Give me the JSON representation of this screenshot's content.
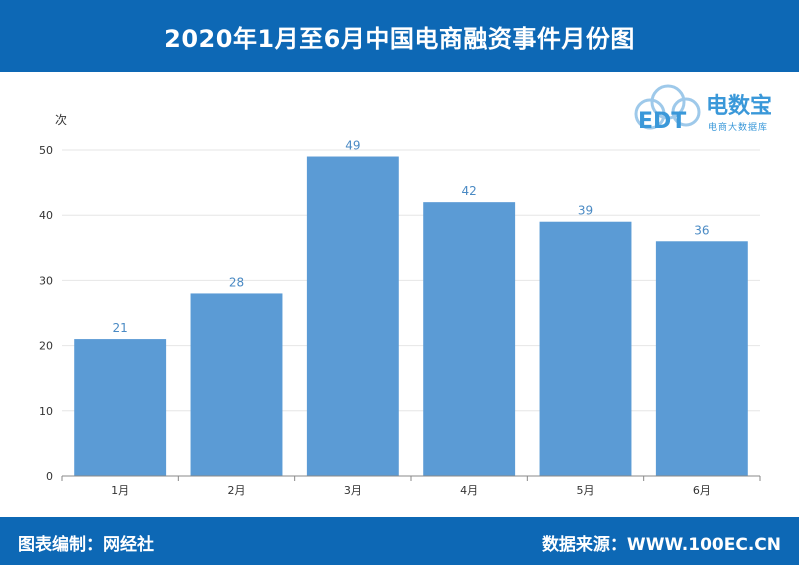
{
  "header": {
    "title": "2020年1月至6月中国电商融资事件月份图"
  },
  "logo": {
    "brand": "电数宝",
    "subtitle": "电商大数据库",
    "mark": "EDT"
  },
  "footer": {
    "left": "图表编制：网经社",
    "right": "数据来源：WWW.100EC.CN"
  },
  "colors": {
    "header_bg": "#0d68b5",
    "bar": "#5b9bd5",
    "data_label": "#4a8ac4",
    "logo": "#3a98d9"
  },
  "chart_data": {
    "type": "bar",
    "title": "2020年1月至6月中国电商融资事件月份图",
    "ylabel": "次",
    "xlabel": "",
    "categories": [
      "1月",
      "2月",
      "3月",
      "4月",
      "5月",
      "6月"
    ],
    "values": [
      21,
      28,
      49,
      42,
      39,
      36
    ],
    "ylim": [
      0,
      50
    ],
    "yticks": [
      0,
      10,
      20,
      30,
      40,
      50
    ],
    "grid": true,
    "legend": "none"
  }
}
